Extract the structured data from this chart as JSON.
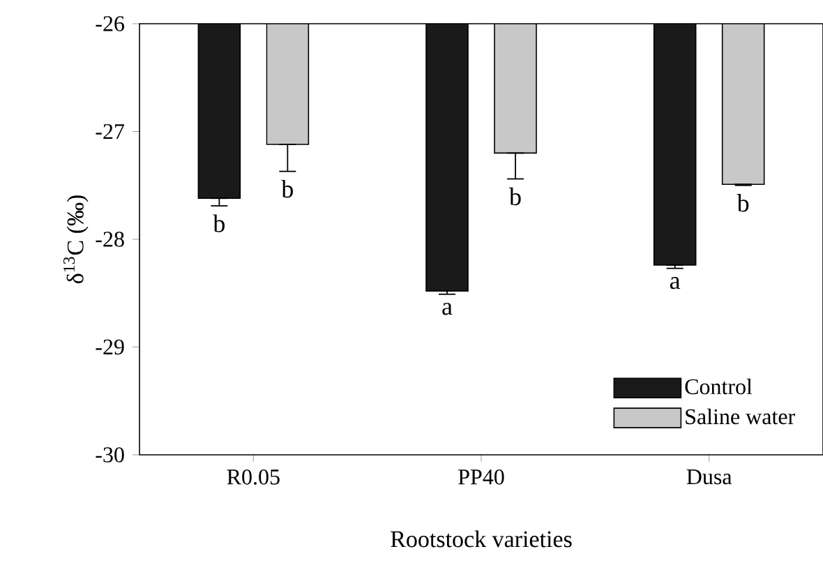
{
  "chart_data": {
    "type": "bar",
    "xlabel": "Rootstock varieties",
    "ylabel": "δ$^{13}$C (‰)",
    "categories": [
      "R0.05",
      "PP40",
      "Dusa"
    ],
    "series": [
      {
        "name": "Control",
        "color": "#1a1a1a",
        "values": [
          -27.62,
          -28.48,
          -28.24
        ],
        "errors": [
          [
            -27.69,
            -27.62
          ],
          [
            -28.51,
            -28.48
          ],
          [
            -28.27,
            -28.24
          ]
        ]
      },
      {
        "name": "Saline water",
        "color": "#c8c8c8",
        "values": [
          -27.12,
          -27.2,
          -27.49
        ],
        "errors": [
          [
            -27.37,
            -27.12
          ],
          [
            -27.44,
            -27.2
          ],
          [
            -27.5,
            -27.49
          ]
        ]
      }
    ],
    "ylim": [
      -30,
      -26
    ],
    "yticks": [
      -30,
      -29,
      -28,
      -27,
      -26
    ],
    "annotations": [
      "b",
      "b",
      "a",
      "b",
      "a",
      "b"
    ],
    "legend": "bottom right",
    "grid": false
  }
}
